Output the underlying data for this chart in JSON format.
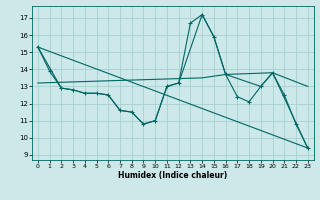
{
  "xlabel": "Humidex (Indice chaleur)",
  "bg_color": "#cce8e8",
  "grid_color": "#a8d0d0",
  "line_color": "#006666",
  "xlim": [
    -0.5,
    23.5
  ],
  "ylim": [
    8.7,
    17.7
  ],
  "yticks": [
    9,
    10,
    11,
    12,
    13,
    14,
    15,
    16,
    17
  ],
  "xticks": [
    0,
    1,
    2,
    3,
    4,
    5,
    6,
    7,
    8,
    9,
    10,
    11,
    12,
    13,
    14,
    15,
    16,
    17,
    18,
    19,
    20,
    21,
    22,
    23
  ],
  "series": [
    {
      "x": [
        0,
        1,
        2,
        3,
        4,
        5,
        6,
        7,
        8,
        9,
        10,
        11,
        12,
        13,
        14,
        15,
        16,
        17,
        18,
        19,
        20,
        21,
        22,
        23
      ],
      "y": [
        15.3,
        13.9,
        12.9,
        12.8,
        12.6,
        12.6,
        12.5,
        11.6,
        11.5,
        10.8,
        11.0,
        13.0,
        13.2,
        16.7,
        17.2,
        15.9,
        13.7,
        12.4,
        12.1,
        13.0,
        13.8,
        12.5,
        10.8,
        9.4
      ],
      "marker": true
    },
    {
      "x": [
        0,
        2,
        3,
        4,
        5,
        6,
        7,
        8,
        9,
        10,
        11,
        12,
        14,
        15,
        16,
        19,
        20,
        23
      ],
      "y": [
        15.3,
        12.9,
        12.8,
        12.6,
        12.6,
        12.5,
        11.6,
        11.5,
        10.8,
        11.0,
        13.0,
        13.2,
        17.2,
        15.9,
        13.7,
        13.0,
        13.8,
        9.4
      ],
      "marker": false
    },
    {
      "x": [
        0,
        23
      ],
      "y": [
        15.3,
        9.4
      ],
      "marker": false
    },
    {
      "x": [
        0,
        14,
        16,
        20,
        23
      ],
      "y": [
        13.2,
        13.5,
        13.7,
        13.8,
        13.0
      ],
      "marker": false
    }
  ]
}
